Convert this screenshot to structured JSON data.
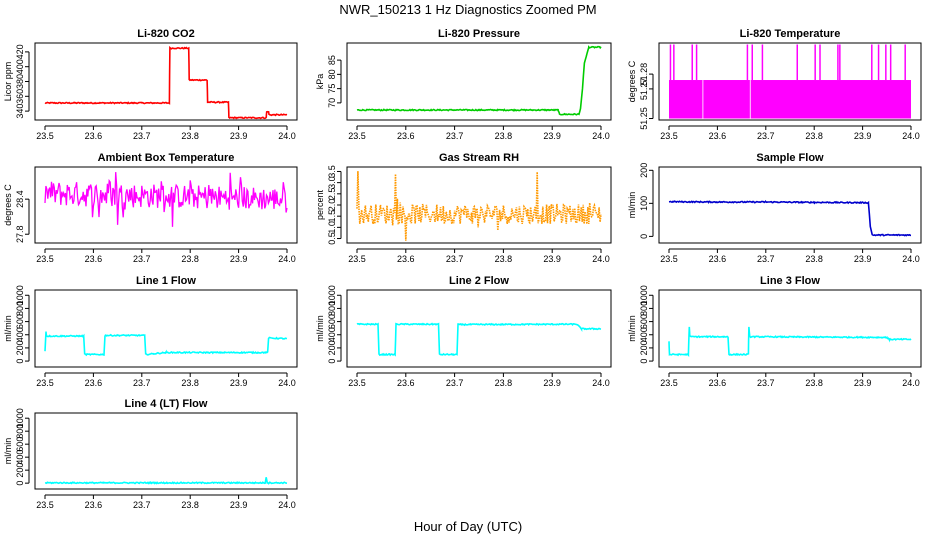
{
  "figure": {
    "title": "NWR_150213  1 Hz Diagnostics Zoomed PM",
    "xlabel": "Hour of Day (UTC)"
  },
  "chart_data": [
    {
      "type": "line",
      "title": "Li-820 CO2",
      "ylabel": "Licor ppm",
      "color": "#ff0000",
      "xlim": [
        23.5,
        24.0
      ],
      "ylim": [
        328,
        432
      ],
      "xticks": [
        23.5,
        23.6,
        23.7,
        23.8,
        23.9,
        24.0
      ],
      "xtick_labels": [
        "23.5",
        "23.6",
        "23.7",
        "23.8",
        "23.9",
        "24.0"
      ],
      "yticks": [
        340,
        360,
        380,
        400,
        420
      ],
      "ytick_labels": [
        "340",
        "360",
        "380",
        "400",
        "420"
      ],
      "grid": false,
      "series": [
        {
          "x": [
            23.5,
            23.757,
            23.758,
            23.797,
            23.798,
            23.835,
            23.836,
            23.879,
            23.88,
            23.957,
            23.958,
            23.962,
            23.963,
            24.0
          ],
          "y": [
            351,
            351,
            425,
            425,
            382,
            382,
            352,
            352,
            331,
            331,
            339,
            339,
            335,
            335
          ]
        }
      ]
    },
    {
      "type": "line",
      "title": "Li-820 Pressure",
      "ylabel": "kPa",
      "color": "#00cc00",
      "xlim": [
        23.5,
        24.0
      ],
      "ylim": [
        64,
        91
      ],
      "xticks": [
        23.5,
        23.6,
        23.7,
        23.8,
        23.9,
        24.0
      ],
      "xtick_labels": [
        "23.5",
        "23.6",
        "23.7",
        "23.8",
        "23.9",
        "24.0"
      ],
      "yticks": [
        70,
        75,
        80,
        85
      ],
      "ytick_labels": [
        "70",
        "75",
        "80",
        "85"
      ],
      "grid": false,
      "series": [
        {
          "x": [
            23.5,
            23.912,
            23.915,
            23.955,
            23.958,
            23.962,
            23.966,
            23.975,
            24.0
          ],
          "y": [
            67.5,
            67.5,
            66.0,
            66.0,
            68,
            75,
            84,
            89.5,
            89.5
          ]
        }
      ]
    },
    {
      "type": "line",
      "title": "Li-820 Temperature",
      "ylabel": "degrees C",
      "color": "#ff00ff",
      "xlim": [
        23.5,
        24.0
      ],
      "ylim": [
        51.249,
        51.301
      ],
      "xticks": [
        23.5,
        23.6,
        23.7,
        23.8,
        23.9,
        24.0
      ],
      "xtick_labels": [
        "23.5",
        "23.6",
        "23.7",
        "23.8",
        "23.9",
        "24.0"
      ],
      "yticks": [
        51.25,
        51.27,
        51.28
      ],
      "ytick_labels": [
        "51.25",
        "51.27",
        "51.28"
      ],
      "grid": false,
      "series": [
        {
          "band": [
            51.25,
            51.276
          ],
          "spikes_x": [
            23.503,
            23.51,
            23.548,
            23.557,
            23.662,
            23.672,
            23.693,
            23.765,
            23.802,
            23.812,
            23.849,
            23.853,
            23.919,
            23.933,
            23.948,
            23.958,
            23.988
          ],
          "spike_top": 51.3,
          "gap_x": [
            23.57,
            23.668
          ]
        }
      ]
    },
    {
      "type": "line",
      "title": "Ambient Box Temperature",
      "ylabel": "degrees C",
      "color": "#ff00ff",
      "xlim": [
        23.5,
        24.0
      ],
      "ylim": [
        27.65,
        28.95
      ],
      "xticks": [
        23.5,
        23.6,
        23.7,
        23.8,
        23.9,
        24.0
      ],
      "xtick_labels": [
        "23.5",
        "23.6",
        "23.7",
        "23.8",
        "23.9",
        "24.0"
      ],
      "yticks": [
        27.8,
        28.4
      ],
      "ytick_labels": [
        "27.8",
        "28.4"
      ],
      "grid": false,
      "series": [
        {
          "noise": {
            "x": [
              23.5,
              24.0
            ],
            "center": [
              28.5,
              28.4
            ],
            "half_range": [
              0.22,
              0.2
            ],
            "outliers": 0.35
          }
        }
      ]
    },
    {
      "type": "line",
      "title": "Gas Stream RH",
      "ylabel": "percent",
      "color": "#ff9900",
      "xlim": [
        23.5,
        24.0
      ],
      "ylim": [
        0.3,
        3.7
      ],
      "xticks": [
        23.5,
        23.6,
        23.7,
        23.8,
        23.9,
        24.0
      ],
      "xtick_labels": [
        "23.5",
        "23.6",
        "23.7",
        "23.8",
        "23.9",
        "24.0"
      ],
      "yticks": [
        0.5,
        1.0,
        1.5,
        2.0,
        2.5,
        3.0,
        3.5
      ],
      "ytick_labels": [
        "0.5",
        "1.0",
        "1.5",
        "2.0",
        "2.5",
        "3.0",
        "3.5"
      ],
      "grid": false,
      "series": [
        {
          "noise": {
            "x": [
              23.5,
              24.0
            ],
            "center": [
              1.6,
              1.6
            ],
            "half_range": [
              0.45,
              0.45
            ],
            "outliers": 1.6
          }
        }
      ]
    },
    {
      "type": "line",
      "title": "Sample Flow",
      "ylabel": "ml/min",
      "color": "#0000cc",
      "xlim": [
        23.5,
        24.0
      ],
      "ylim": [
        -20,
        210
      ],
      "xticks": [
        23.5,
        23.6,
        23.7,
        23.8,
        23.9,
        24.0
      ],
      "xtick_labels": [
        "23.5",
        "23.6",
        "23.7",
        "23.8",
        "23.9",
        "24.0"
      ],
      "yticks": [
        0,
        100,
        200
      ],
      "ytick_labels": [
        "0",
        "100",
        "200"
      ],
      "grid": false,
      "series": [
        {
          "x": [
            23.5,
            23.6,
            23.7,
            23.8,
            23.912,
            23.916,
            23.92,
            24.0
          ],
          "y": [
            105,
            104,
            104,
            103,
            102,
            30,
            4,
            4
          ]
        }
      ]
    },
    {
      "type": "line",
      "title": "Line 1 Flow",
      "ylabel": "ml/min",
      "color": "#00ffff",
      "xlim": [
        23.5,
        24.0
      ],
      "ylim": [
        -90,
        1080
      ],
      "xticks": [
        23.5,
        23.6,
        23.7,
        23.8,
        23.9,
        24.0
      ],
      "xtick_labels": [
        "23.5",
        "23.6",
        "23.7",
        "23.8",
        "23.9",
        "24.0"
      ],
      "yticks": [
        0,
        200,
        400,
        600,
        800,
        1000
      ],
      "ytick_labels": [
        "0",
        "200",
        "400",
        "600",
        "800",
        "1000"
      ],
      "grid": false,
      "series": [
        {
          "x": [
            23.5,
            23.502,
            23.503,
            23.58,
            23.582,
            23.622,
            23.624,
            23.706,
            23.708,
            23.75,
            23.96,
            23.962,
            24.0
          ],
          "y": [
            150,
            450,
            380,
            380,
            100,
            100,
            390,
            390,
            100,
            130,
            130,
            350,
            340
          ]
        }
      ]
    },
    {
      "type": "line",
      "title": "Line 2 Flow",
      "ylabel": "ml/min",
      "color": "#00ffff",
      "xlim": [
        23.5,
        24.0
      ],
      "ylim": [
        -90,
        1080
      ],
      "xticks": [
        23.5,
        23.6,
        23.7,
        23.8,
        23.9,
        24.0
      ],
      "xtick_labels": [
        "23.5",
        "23.6",
        "23.7",
        "23.8",
        "23.9",
        "24.0"
      ],
      "yticks": [
        0,
        200,
        400,
        600,
        800,
        1000
      ],
      "ytick_labels": [
        "0",
        "200",
        "400",
        "600",
        "800",
        "1000"
      ],
      "grid": false,
      "series": [
        {
          "x": [
            23.5,
            23.543,
            23.545,
            23.578,
            23.58,
            23.667,
            23.669,
            23.705,
            23.707,
            23.95,
            23.96,
            24.0
          ],
          "y": [
            560,
            560,
            100,
            100,
            560,
            560,
            100,
            100,
            555,
            560,
            490,
            490
          ]
        }
      ]
    },
    {
      "type": "line",
      "title": "Line 3 Flow",
      "ylabel": "ml/min",
      "color": "#00ffff",
      "xlim": [
        23.5,
        24.0
      ],
      "ylim": [
        -90,
        1080
      ],
      "xticks": [
        23.5,
        23.6,
        23.7,
        23.8,
        23.9,
        24.0
      ],
      "xtick_labels": [
        "23.5",
        "23.6",
        "23.7",
        "23.8",
        "23.9",
        "24.0"
      ],
      "yticks": [
        0,
        200,
        400,
        600,
        800,
        1000
      ],
      "ytick_labels": [
        "0",
        "200",
        "400",
        "600",
        "800",
        "1000"
      ],
      "grid": false,
      "series": [
        {
          "x": [
            23.5,
            23.501,
            23.502,
            23.54,
            23.542,
            23.543,
            23.622,
            23.624,
            23.664,
            23.665,
            23.667,
            23.8,
            23.95,
            23.955,
            24.0
          ],
          "y": [
            300,
            100,
            100,
            100,
            520,
            370,
            370,
            100,
            100,
            520,
            370,
            365,
            360,
            330,
            330
          ]
        }
      ]
    },
    {
      "type": "line",
      "title": "Line 4 (LT) Flow",
      "ylabel": "ml/min",
      "color": "#00ffff",
      "xlim": [
        23.5,
        24.0
      ],
      "ylim": [
        -90,
        1080
      ],
      "xticks": [
        23.5,
        23.6,
        23.7,
        23.8,
        23.9,
        24.0
      ],
      "xtick_labels": [
        "23.5",
        "23.6",
        "23.7",
        "23.8",
        "23.9",
        "24.0"
      ],
      "yticks": [
        0,
        200,
        400,
        600,
        800,
        1000
      ],
      "ytick_labels": [
        "0",
        "200",
        "400",
        "600",
        "800",
        "1000"
      ],
      "grid": false,
      "series": [
        {
          "x": [
            23.5,
            23.955,
            23.957,
            23.959,
            23.961,
            24.0
          ],
          "y": [
            5,
            5,
            90,
            10,
            5,
            5
          ]
        }
      ]
    }
  ]
}
